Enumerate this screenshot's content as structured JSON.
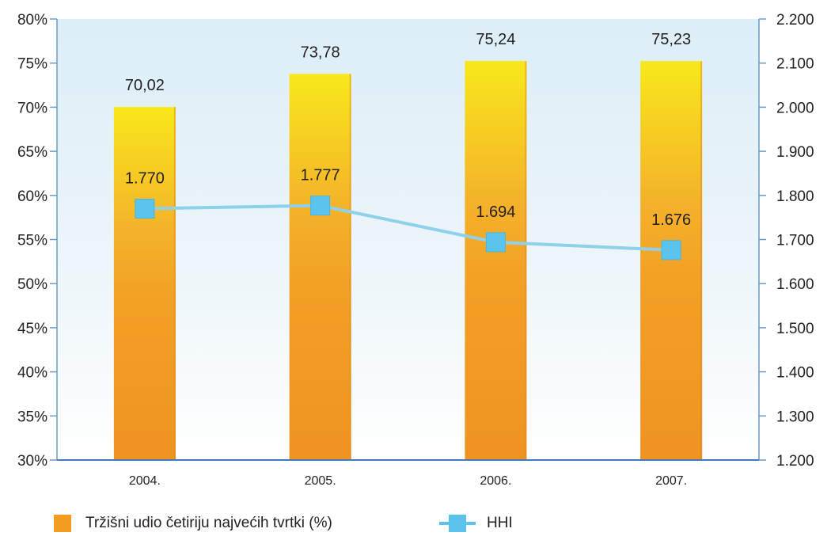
{
  "chart_data": {
    "type": "bar",
    "categories": [
      "2004.",
      "2005.",
      "2006.",
      "2007."
    ],
    "series": [
      {
        "name": "Tržišni udio četiriju najvećih tvrtki (%)",
        "kind": "bar",
        "axis": "left",
        "values": [
          70.02,
          73.78,
          75.24,
          75.23
        ],
        "labels": [
          "70,02",
          "73,78",
          "75,24",
          "75,23"
        ],
        "color": "#f39c1f",
        "color_top": "#f7e21b"
      },
      {
        "name": "HHI",
        "kind": "line",
        "axis": "right",
        "values": [
          1770,
          1777,
          1694,
          1676
        ],
        "labels": [
          "1.770",
          "1.777",
          "1.694",
          "1.676"
        ],
        "color": "#5bc4ec",
        "line_color": "#8fd0ea"
      }
    ],
    "y_left": {
      "lim": [
        30,
        80
      ],
      "ticks": [
        30,
        35,
        40,
        45,
        50,
        55,
        60,
        65,
        70,
        75,
        80
      ],
      "tick_labels": [
        "30%",
        "35%",
        "40%",
        "45%",
        "50%",
        "55%",
        "60%",
        "65%",
        "70%",
        "75%",
        "80%"
      ]
    },
    "y_right": {
      "lim": [
        1200,
        2200
      ],
      "ticks": [
        1200,
        1300,
        1400,
        1500,
        1600,
        1700,
        1800,
        1900,
        2000,
        2100,
        2200
      ],
      "tick_labels": [
        "1.200",
        "1.300",
        "1.400",
        "1.500",
        "1.600",
        "1.700",
        "1.800",
        "1.900",
        "2.000",
        "2.100",
        "2.200"
      ]
    },
    "title": "",
    "xlabel": "",
    "grid": false,
    "legend_position": "bottom",
    "plot_background": "#dfeef6",
    "axis_color": "#6d9ac4"
  },
  "legend": {
    "bar_label": "Tržišni udio četiriju najvećih tvrtki (%)",
    "line_label": "HHI"
  }
}
